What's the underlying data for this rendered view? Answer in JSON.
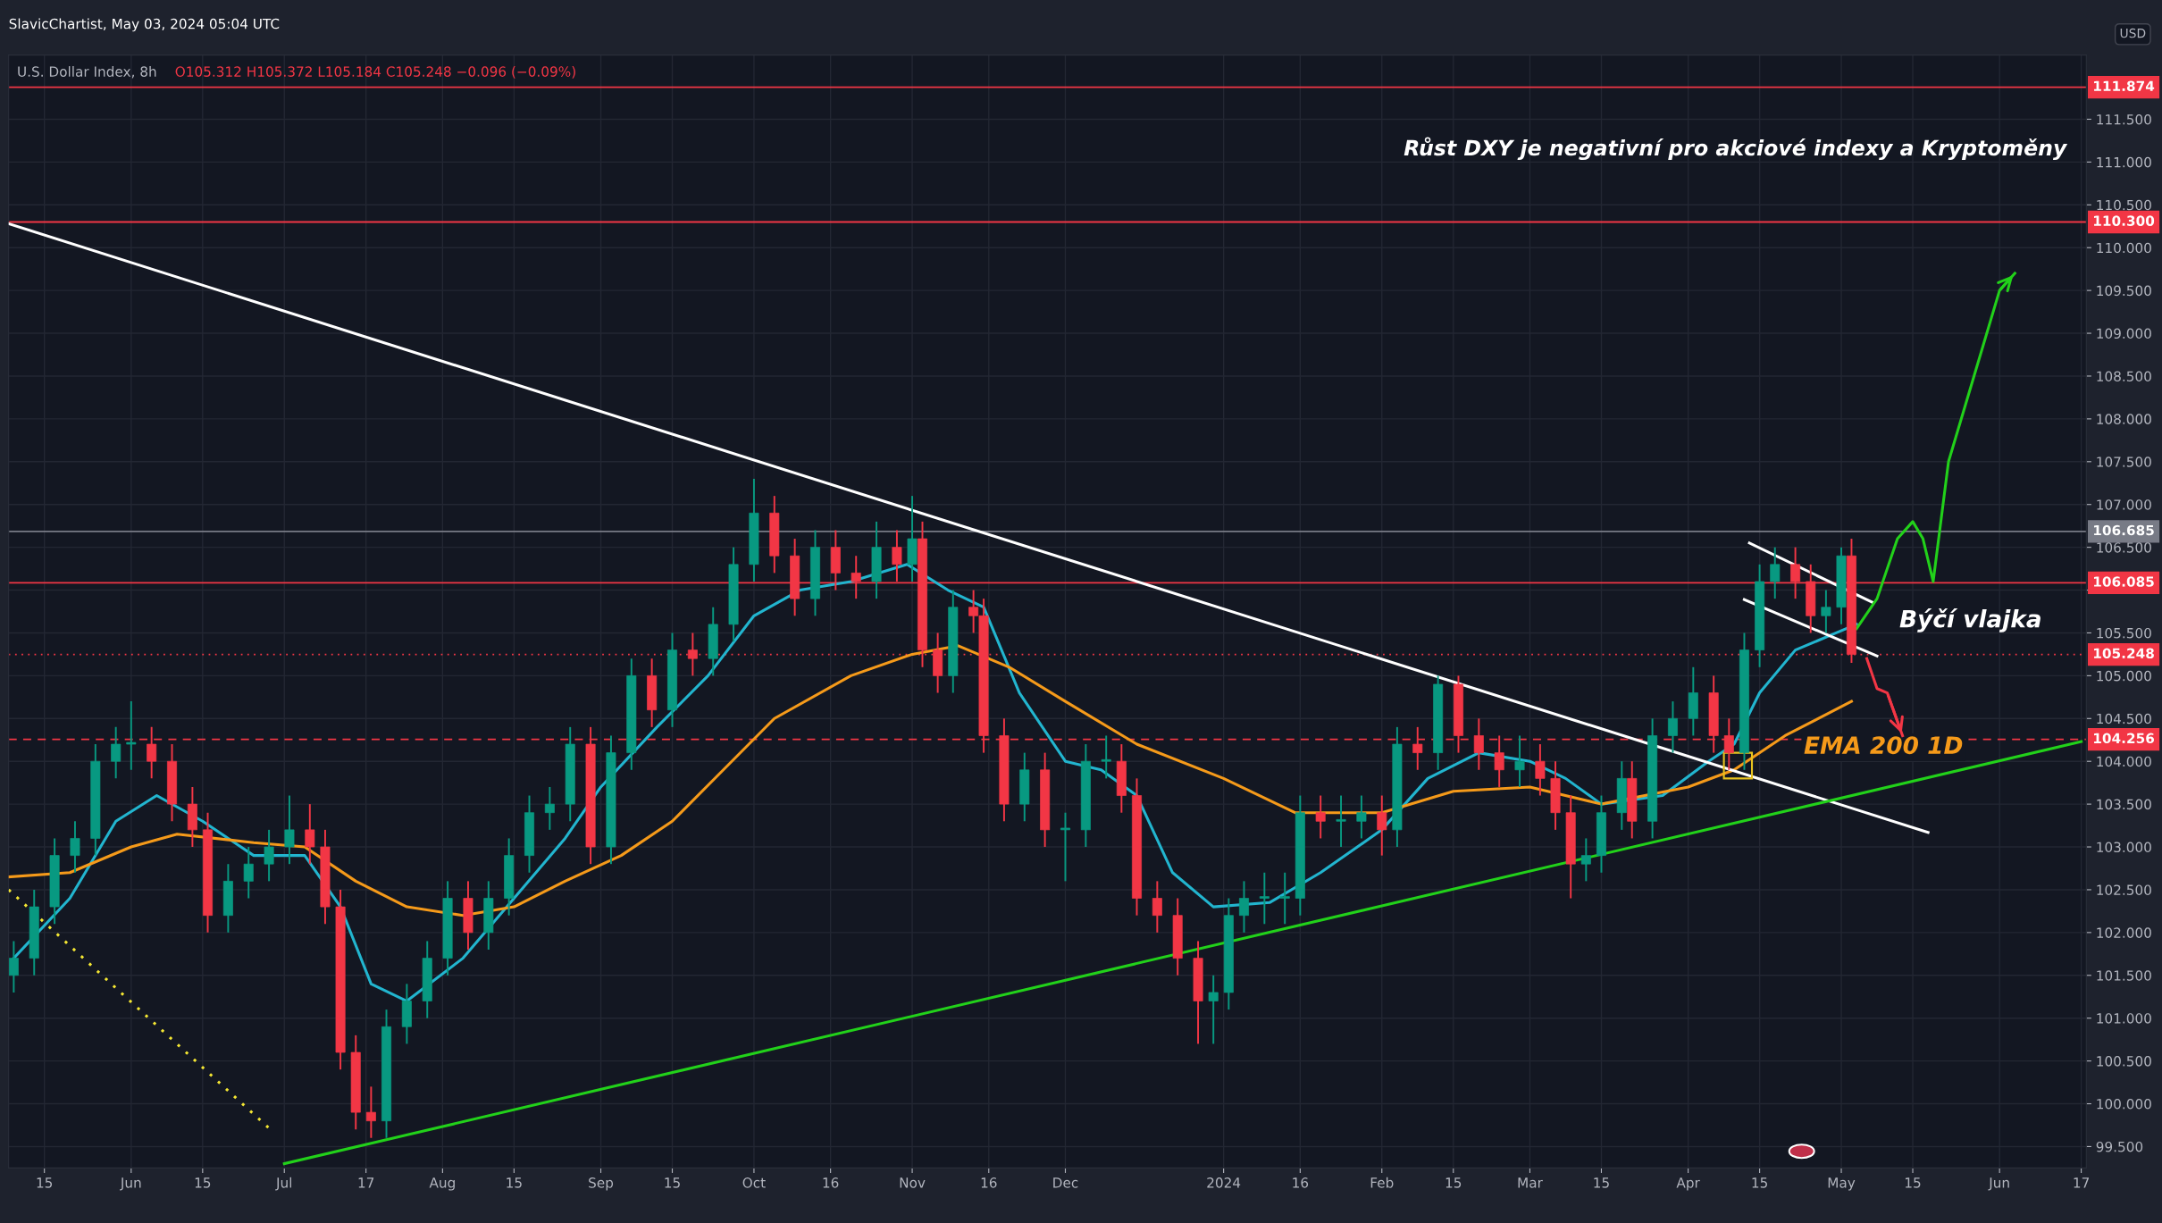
{
  "chart_data": {
    "type": "candlestick",
    "title": "U.S. Dollar Index, 8h",
    "subtitle": "O105.312 H105.372 L105.184 C105.248 −0.096 (−0.09%)",
    "annotations": [
      "SlavicChartist, May 03, 2024 05:04 UTC",
      "USD",
      "Růst DXY je negativní pro akciové indexy a Kryptoměny",
      "Býčí vlajka",
      "EMA 200 1D"
    ],
    "x": [
      "2023-05-09",
      "2023-05-13",
      "2023-05-17",
      "2023-05-21",
      "2023-05-25",
      "2023-05-29",
      "2023-06-01",
      "2023-06-05",
      "2023-06-09",
      "2023-06-13",
      "2023-06-16",
      "2023-06-20",
      "2023-06-24",
      "2023-06-28",
      "2023-07-02",
      "2023-07-06",
      "2023-07-09",
      "2023-07-12",
      "2023-07-15",
      "2023-07-18",
      "2023-07-21",
      "2023-07-25",
      "2023-07-29",
      "2023-08-02",
      "2023-08-06",
      "2023-08-10",
      "2023-08-14",
      "2023-08-18",
      "2023-08-22",
      "2023-08-26",
      "2023-08-30",
      "2023-09-03",
      "2023-09-07",
      "2023-09-11",
      "2023-09-15",
      "2023-09-19",
      "2023-09-23",
      "2023-09-27",
      "2023-10-01",
      "2023-10-05",
      "2023-10-09",
      "2023-10-13",
      "2023-10-17",
      "2023-10-21",
      "2023-10-25",
      "2023-10-29",
      "2023-11-01",
      "2023-11-03",
      "2023-11-06",
      "2023-11-09",
      "2023-11-13",
      "2023-11-15",
      "2023-11-19",
      "2023-11-23",
      "2023-11-27",
      "2023-12-01",
      "2023-12-05",
      "2023-12-09",
      "2023-12-12",
      "2023-12-15",
      "2023-12-19",
      "2023-12-23",
      "2023-12-27",
      "2023-12-30",
      "2024-01-02",
      "2024-01-05",
      "2024-01-09",
      "2024-01-13",
      "2024-01-16",
      "2024-01-20",
      "2024-01-24",
      "2024-01-28",
      "2024-02-01",
      "2024-02-04",
      "2024-02-08",
      "2024-02-12",
      "2024-02-16",
      "2024-02-20",
      "2024-02-24",
      "2024-02-28",
      "2024-03-03",
      "2024-03-06",
      "2024-03-09",
      "2024-03-12",
      "2024-03-15",
      "2024-03-19",
      "2024-03-21",
      "2024-03-25",
      "2024-03-29",
      "2024-04-02",
      "2024-04-06",
      "2024-04-09",
      "2024-04-12",
      "2024-04-15",
      "2024-04-18",
      "2024-04-22",
      "2024-04-25",
      "2024-04-28",
      "2024-05-01",
      "2024-05-03"
    ],
    "ohlc": [
      [
        101.5,
        101.9,
        101.3,
        101.7
      ],
      [
        101.7,
        102.5,
        101.5,
        102.3
      ],
      [
        102.3,
        103.1,
        102.1,
        102.9
      ],
      [
        102.9,
        103.3,
        102.7,
        103.1
      ],
      [
        103.1,
        104.2,
        102.9,
        104.0
      ],
      [
        104.0,
        104.4,
        103.8,
        104.2
      ],
      [
        104.2,
        104.7,
        103.9,
        104.2
      ],
      [
        104.2,
        104.4,
        103.8,
        104.0
      ],
      [
        104.0,
        104.2,
        103.3,
        103.5
      ],
      [
        103.5,
        103.7,
        103.0,
        103.2
      ],
      [
        103.2,
        103.4,
        102.0,
        102.2
      ],
      [
        102.2,
        102.8,
        102.0,
        102.6
      ],
      [
        102.6,
        103.0,
        102.4,
        102.8
      ],
      [
        102.8,
        103.2,
        102.6,
        103.0
      ],
      [
        103.0,
        103.6,
        102.8,
        103.2
      ],
      [
        103.2,
        103.5,
        102.8,
        103.0
      ],
      [
        103.0,
        103.2,
        102.1,
        102.3
      ],
      [
        102.3,
        102.5,
        100.4,
        100.6
      ],
      [
        100.6,
        100.8,
        99.7,
        99.9
      ],
      [
        99.9,
        100.2,
        99.6,
        99.8
      ],
      [
        99.8,
        101.1,
        99.6,
        100.9
      ],
      [
        100.9,
        101.4,
        100.7,
        101.2
      ],
      [
        101.2,
        101.9,
        101.0,
        101.7
      ],
      [
        101.7,
        102.6,
        101.5,
        102.4
      ],
      [
        102.4,
        102.6,
        101.8,
        102.0
      ],
      [
        102.0,
        102.6,
        101.8,
        102.4
      ],
      [
        102.4,
        103.1,
        102.2,
        102.9
      ],
      [
        102.9,
        103.6,
        102.7,
        103.4
      ],
      [
        103.4,
        103.7,
        103.2,
        103.5
      ],
      [
        103.5,
        104.4,
        103.3,
        104.2
      ],
      [
        104.2,
        104.4,
        102.8,
        103.0
      ],
      [
        103.0,
        104.3,
        102.8,
        104.1
      ],
      [
        104.1,
        105.2,
        103.9,
        105.0
      ],
      [
        105.0,
        105.2,
        104.4,
        104.6
      ],
      [
        104.6,
        105.5,
        104.4,
        105.3
      ],
      [
        105.3,
        105.5,
        105.0,
        105.2
      ],
      [
        105.2,
        105.8,
        105.0,
        105.6
      ],
      [
        105.6,
        106.5,
        105.4,
        106.3
      ],
      [
        106.3,
        107.3,
        106.1,
        106.9
      ],
      [
        106.9,
        107.1,
        106.2,
        106.4
      ],
      [
        106.4,
        106.6,
        105.7,
        105.9
      ],
      [
        105.9,
        106.7,
        105.7,
        106.5
      ],
      [
        106.5,
        106.7,
        106.0,
        106.2
      ],
      [
        106.2,
        106.4,
        105.9,
        106.1
      ],
      [
        106.1,
        106.8,
        105.9,
        106.5
      ],
      [
        106.5,
        106.7,
        106.1,
        106.3
      ],
      [
        106.3,
        107.1,
        106.1,
        106.6
      ],
      [
        106.6,
        106.8,
        105.1,
        105.3
      ],
      [
        105.3,
        105.5,
        104.8,
        105.0
      ],
      [
        105.0,
        106.0,
        104.8,
        105.8
      ],
      [
        105.8,
        106.0,
        105.5,
        105.7
      ],
      [
        105.7,
        105.9,
        104.1,
        104.3
      ],
      [
        104.3,
        104.5,
        103.3,
        103.5
      ],
      [
        103.5,
        104.1,
        103.3,
        103.9
      ],
      [
        103.9,
        104.1,
        103.0,
        103.2
      ],
      [
        103.2,
        103.4,
        102.6,
        103.2
      ],
      [
        103.2,
        104.2,
        103.0,
        104.0
      ],
      [
        104.0,
        104.3,
        103.8,
        104.0
      ],
      [
        104.0,
        104.2,
        103.4,
        103.6
      ],
      [
        103.6,
        103.8,
        102.2,
        102.4
      ],
      [
        102.4,
        102.6,
        102.0,
        102.2
      ],
      [
        102.2,
        102.4,
        101.5,
        101.7
      ],
      [
        101.7,
        101.9,
        100.7,
        101.2
      ],
      [
        101.2,
        101.5,
        100.7,
        101.3
      ],
      [
        101.3,
        102.4,
        101.1,
        102.2
      ],
      [
        102.2,
        102.6,
        102.0,
        102.4
      ],
      [
        102.4,
        102.7,
        102.1,
        102.4
      ],
      [
        102.4,
        102.7,
        102.1,
        102.4
      ],
      [
        102.4,
        103.6,
        102.2,
        103.4
      ],
      [
        103.4,
        103.6,
        103.1,
        103.3
      ],
      [
        103.3,
        103.6,
        103.0,
        103.3
      ],
      [
        103.3,
        103.6,
        103.1,
        103.4
      ],
      [
        103.4,
        103.6,
        102.9,
        103.2
      ],
      [
        103.2,
        104.4,
        103.0,
        104.2
      ],
      [
        104.2,
        104.4,
        103.9,
        104.1
      ],
      [
        104.1,
        105.0,
        103.9,
        104.9
      ],
      [
        104.9,
        105.0,
        104.1,
        104.3
      ],
      [
        104.3,
        104.5,
        103.9,
        104.1
      ],
      [
        104.1,
        104.3,
        103.7,
        103.9
      ],
      [
        103.9,
        104.3,
        103.7,
        104.0
      ],
      [
        104.0,
        104.2,
        103.6,
        103.8
      ],
      [
        103.8,
        104.0,
        103.2,
        103.4
      ],
      [
        103.4,
        103.6,
        102.4,
        102.8
      ],
      [
        102.8,
        103.1,
        102.6,
        102.9
      ],
      [
        102.9,
        103.6,
        102.7,
        103.4
      ],
      [
        103.4,
        104.0,
        103.2,
        103.8
      ],
      [
        103.8,
        104.0,
        103.1,
        103.3
      ],
      [
        103.3,
        104.5,
        103.1,
        104.3
      ],
      [
        104.3,
        104.7,
        104.1,
        104.5
      ],
      [
        104.5,
        105.1,
        104.3,
        104.8
      ],
      [
        104.8,
        105.0,
        104.1,
        104.3
      ],
      [
        104.3,
        104.5,
        103.9,
        104.1
      ],
      [
        104.1,
        105.5,
        103.9,
        105.3
      ],
      [
        105.3,
        106.3,
        105.1,
        106.1
      ],
      [
        106.1,
        106.5,
        105.9,
        106.3
      ],
      [
        106.3,
        106.5,
        105.9,
        106.1
      ],
      [
        106.1,
        106.3,
        105.5,
        105.7
      ],
      [
        105.7,
        106.0,
        105.5,
        105.8
      ],
      [
        105.8,
        106.5,
        105.6,
        106.4
      ],
      [
        106.4,
        106.6,
        105.15,
        105.25
      ]
    ],
    "series": [
      {
        "type": "line",
        "color": "#22b5cf",
        "line_style": "solid",
        "x": [
          "2023-05-09",
          "2023-05-20",
          "2023-05-29",
          "2023-06-06",
          "2023-06-15",
          "2023-06-25",
          "2023-07-05",
          "2023-07-12",
          "2023-07-18",
          "2023-07-25",
          "2023-08-05",
          "2023-08-15",
          "2023-08-25",
          "2023-09-01",
          "2023-09-12",
          "2023-09-22",
          "2023-10-01",
          "2023-10-10",
          "2023-10-20",
          "2023-10-31",
          "2023-11-08",
          "2023-11-15",
          "2023-11-22",
          "2023-12-01",
          "2023-12-08",
          "2023-12-15",
          "2023-12-22",
          "2023-12-30",
          "2024-01-10",
          "2024-01-20",
          "2024-02-01",
          "2024-02-10",
          "2024-02-20",
          "2024-03-01",
          "2024-03-08",
          "2024-03-15",
          "2024-03-27",
          "2024-04-05",
          "2024-04-10",
          "2024-04-15",
          "2024-04-22",
          "2024-04-30",
          "2024-05-04"
        ],
        "values": [
          101.7,
          102.4,
          103.3,
          103.6,
          103.3,
          102.9,
          102.9,
          102.3,
          101.4,
          101.2,
          101.7,
          102.4,
          103.1,
          103.7,
          104.4,
          105.0,
          105.7,
          106.0,
          106.1,
          106.3,
          106.0,
          105.8,
          104.8,
          104.0,
          103.9,
          103.6,
          102.7,
          102.3,
          102.35,
          102.7,
          103.2,
          103.8,
          104.1,
          104.0,
          103.8,
          103.5,
          103.6,
          104.0,
          104.2,
          104.8,
          105.3,
          105.5,
          105.6
        ]
      },
      {
        "type": "line",
        "color": "#f59a1a",
        "line_style": "solid",
        "x": [
          "2023-05-08",
          "2023-05-20",
          "2023-06-01",
          "2023-06-10",
          "2023-06-25",
          "2023-07-05",
          "2023-07-15",
          "2023-07-25",
          "2023-08-05",
          "2023-08-15",
          "2023-08-25",
          "2023-09-05",
          "2023-09-15",
          "2023-09-25",
          "2023-10-05",
          "2023-10-20",
          "2023-11-01",
          "2023-11-10",
          "2023-11-20",
          "2023-12-01",
          "2023-12-15",
          "2024-01-01",
          "2024-01-15",
          "2024-02-01",
          "2024-02-15",
          "2024-03-01",
          "2024-03-15",
          "2024-04-01",
          "2024-04-10",
          "2024-04-20",
          "2024-05-03"
        ],
        "values": [
          102.65,
          102.7,
          103.0,
          103.15,
          103.05,
          103.0,
          102.6,
          102.3,
          102.2,
          102.3,
          102.6,
          102.9,
          103.3,
          103.9,
          104.5,
          105.0,
          105.25,
          105.35,
          105.1,
          104.7,
          104.2,
          103.8,
          103.4,
          103.4,
          103.65,
          103.7,
          103.5,
          103.7,
          103.9,
          104.3,
          104.7
        ]
      },
      {
        "type": "line",
        "color": "#ffffff",
        "line_style": "solid",
        "x": [
          "2023-05-08",
          "2024-05-18"
        ],
        "values": [
          110.28,
          103.17
        ]
      },
      {
        "type": "line",
        "color": "#22d11a",
        "line_style": "solid",
        "x": [
          "2023-07-01",
          "2024-06-17"
        ],
        "values": [
          99.3,
          104.23
        ]
      },
      {
        "type": "line",
        "color": "#f5e733",
        "line_style": "dotted",
        "x": [
          "2023-05-08",
          "2023-06-29"
        ],
        "values": [
          102.5,
          99.66
        ]
      },
      {
        "type": "line",
        "color": "#ffffff",
        "line_style": "solid",
        "x": [
          "2024-04-13",
          "2024-05-07"
        ],
        "values": [
          106.55,
          105.86
        ]
      },
      {
        "type": "line",
        "color": "#ffffff",
        "line_style": "solid",
        "x": [
          "2024-04-12",
          "2024-05-08"
        ],
        "values": [
          105.89,
          105.23
        ]
      },
      {
        "type": "line",
        "color": "#22d11a",
        "line_style": "solid",
        "x": [
          "2024-05-04",
          "2024-05-08",
          "2024-05-12",
          "2024-05-15",
          "2024-05-17",
          "2024-05-19",
          "2024-05-22",
          "2024-05-27",
          "2024-06-01",
          "2024-06-04"
        ],
        "values": [
          105.55,
          105.9,
          106.6,
          106.8,
          106.6,
          106.1,
          107.5,
          108.5,
          109.5,
          109.7
        ]
      },
      {
        "type": "line",
        "color": "#f23645",
        "line_style": "solid",
        "x": [
          "2024-05-06",
          "2024-05-08",
          "2024-05-10",
          "2024-05-13"
        ],
        "values": [
          105.2,
          104.85,
          104.8,
          104.3
        ]
      }
    ],
    "ref_lines": [
      {
        "axis": "y",
        "value": 111.874,
        "label": "111.874",
        "color": "#f23645",
        "line_style": "solid"
      },
      {
        "axis": "y",
        "value": 110.3,
        "label": "110.300",
        "color": "#f23645",
        "line_style": "solid"
      },
      {
        "axis": "y",
        "value": 106.685,
        "label": "106.685",
        "color": "#787b86",
        "line_style": "solid"
      },
      {
        "axis": "y",
        "value": 106.085,
        "label": "106.085",
        "color": "#f23645",
        "line_style": "solid"
      },
      {
        "axis": "y",
        "value": 105.248,
        "label": "105.248",
        "color": "#f23645",
        "line_style": "dotted"
      },
      {
        "axis": "y",
        "value": 104.256,
        "label": "104.256",
        "color": "#f23645",
        "line_style": "dashed"
      }
    ],
    "xlim": [
      "2023-05-08",
      "2024-06-18"
    ],
    "xticks": [
      {
        "value": "2023-05-15",
        "label": "15"
      },
      {
        "value": "2023-06-01",
        "label": "Jun"
      },
      {
        "value": "2023-06-15",
        "label": "15"
      },
      {
        "value": "2023-07-01",
        "label": "Jul"
      },
      {
        "value": "2023-07-17",
        "label": "17"
      },
      {
        "value": "2023-08-01",
        "label": "Aug"
      },
      {
        "value": "2023-08-15",
        "label": "15"
      },
      {
        "value": "2023-09-01",
        "label": "Sep"
      },
      {
        "value": "2023-09-15",
        "label": "15"
      },
      {
        "value": "2023-10-01",
        "label": "Oct"
      },
      {
        "value": "2023-10-16",
        "label": "16"
      },
      {
        "value": "2023-11-01",
        "label": "Nov"
      },
      {
        "value": "2023-11-16",
        "label": "16"
      },
      {
        "value": "2023-12-01",
        "label": "Dec"
      },
      {
        "value": "2024-01-01",
        "label": "2024"
      },
      {
        "value": "2024-01-16",
        "label": "16"
      },
      {
        "value": "2024-02-01",
        "label": "Feb"
      },
      {
        "value": "2024-02-15",
        "label": "15"
      },
      {
        "value": "2024-03-01",
        "label": "Mar"
      },
      {
        "value": "2024-03-15",
        "label": "15"
      },
      {
        "value": "2024-04-01",
        "label": "Apr"
      },
      {
        "value": "2024-04-15",
        "label": "15"
      },
      {
        "value": "2024-05-01",
        "label": "May"
      },
      {
        "value": "2024-05-15",
        "label": "15"
      },
      {
        "value": "2024-06-01",
        "label": "Jun"
      },
      {
        "value": "2024-06-17",
        "label": "17"
      }
    ],
    "ylim": [
      99.25,
      112.25
    ],
    "yticks": [
      {
        "value": 99.5,
        "label": "99.500"
      },
      {
        "value": 100,
        "label": "100.000"
      },
      {
        "value": 100.5,
        "label": "100.500"
      },
      {
        "value": 101,
        "label": "101.000"
      },
      {
        "value": 101.5,
        "label": "101.500"
      },
      {
        "value": 102,
        "label": "102.000"
      },
      {
        "value": 102.5,
        "label": "102.500"
      },
      {
        "value": 103,
        "label": "103.000"
      },
      {
        "value": 103.5,
        "label": "103.500"
      },
      {
        "value": 104,
        "label": "104.000"
      },
      {
        "value": 104.5,
        "label": "104.500"
      },
      {
        "value": 105,
        "label": "105.000"
      },
      {
        "value": 105.5,
        "label": "105.500"
      },
      {
        "value": 106,
        "label": null
      },
      {
        "value": 106.5,
        "label": "106.500"
      },
      {
        "value": 107,
        "label": "107.000"
      },
      {
        "value": 107.5,
        "label": "107.500"
      },
      {
        "value": 108,
        "label": "108.000"
      },
      {
        "value": 108.5,
        "label": "108.500"
      },
      {
        "value": 109,
        "label": "109.000"
      },
      {
        "value": 109.5,
        "label": "109.500"
      },
      {
        "value": 110,
        "label": "110.000"
      },
      {
        "value": 110.5,
        "label": "110.500"
      },
      {
        "value": 111,
        "label": "111.000"
      },
      {
        "value": 111.5,
        "label": "111.500"
      }
    ],
    "grid": true,
    "legend": false
  }
}
